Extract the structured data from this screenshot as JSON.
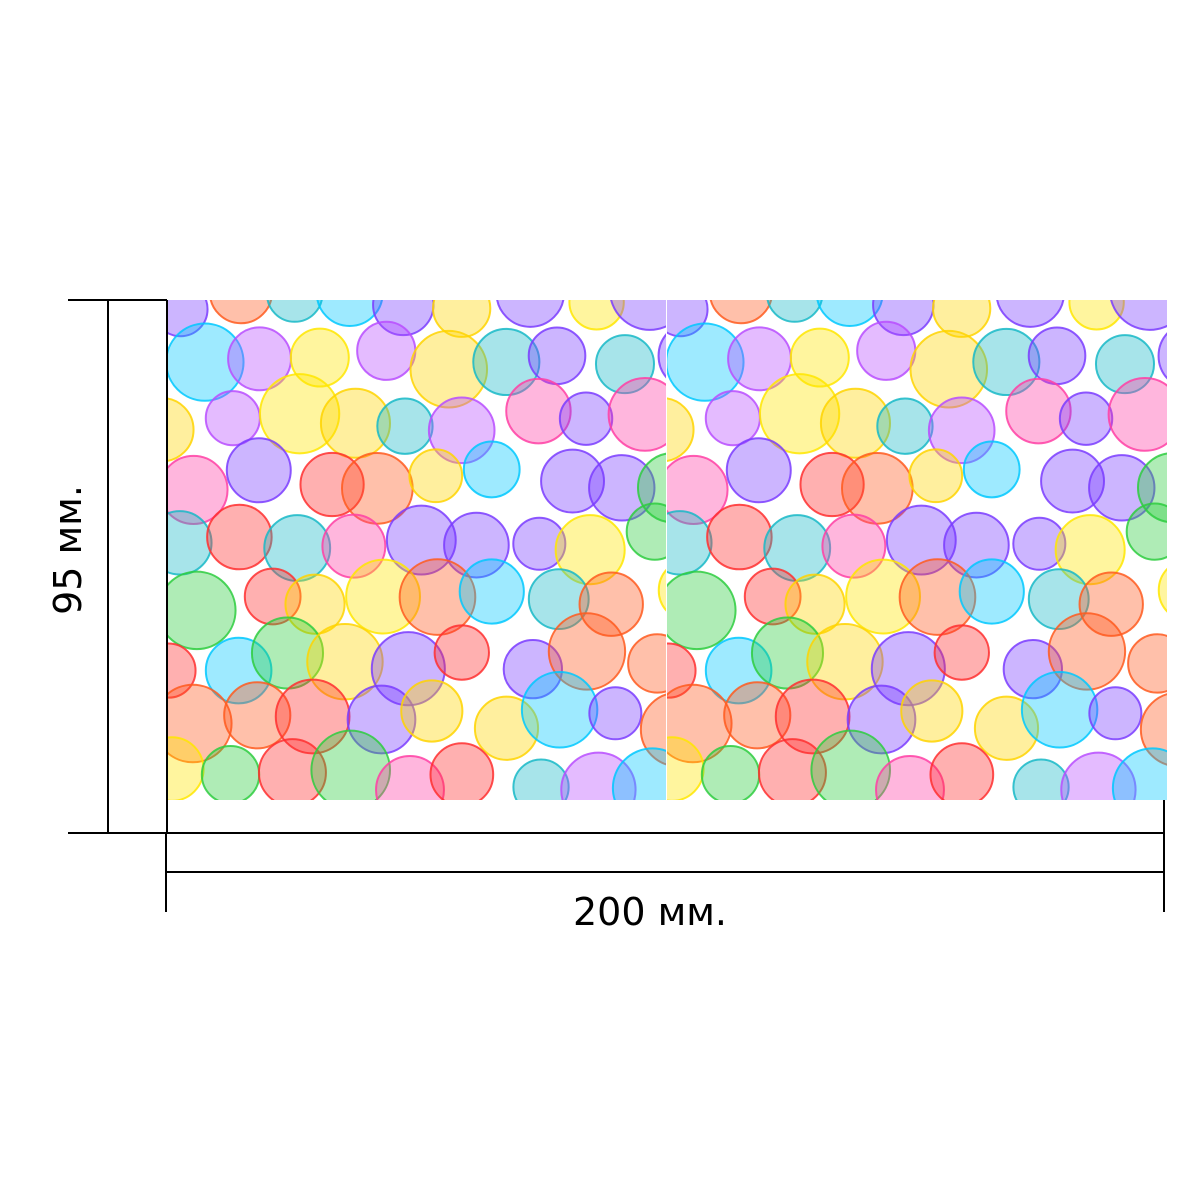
{
  "dimensions": {
    "width_label": "200 мм.",
    "height_label": "95 мм."
  },
  "pattern": {
    "panels": 2,
    "palette": [
      "#ff3fa5",
      "#ffe600",
      "#00c8ff",
      "#7a3cff",
      "#2ecc40",
      "#ff5a1f",
      "#ff2f2f",
      "#b84dff",
      "#ffd400",
      "#18b8c7"
    ]
  },
  "colors": {
    "background": "#ffffff",
    "dimension_lines": "#000000"
  }
}
